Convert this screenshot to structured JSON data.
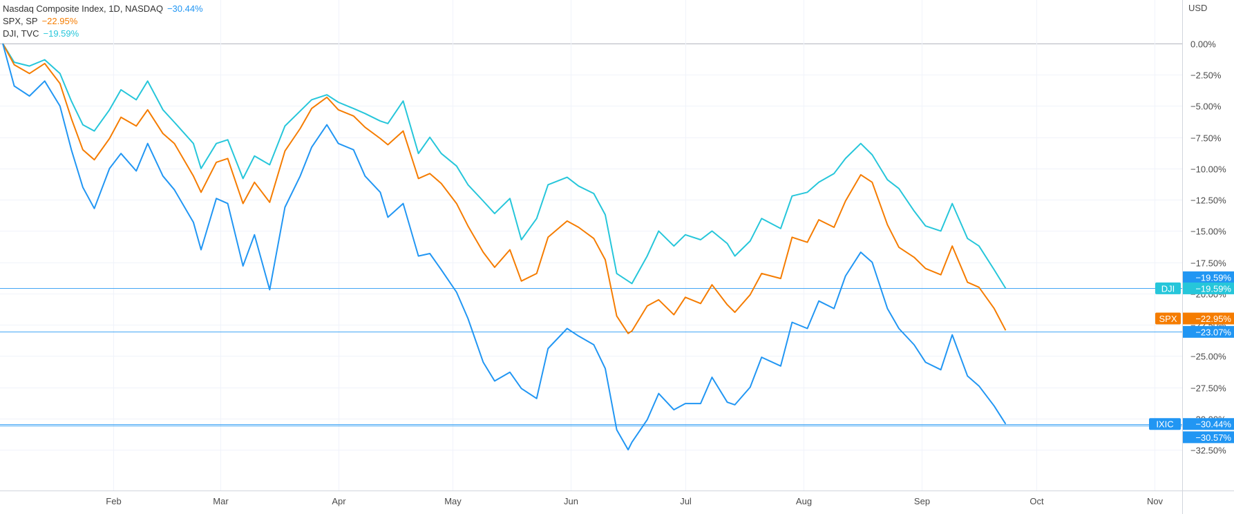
{
  "legend": [
    {
      "label": "Nasdaq Composite Index, 1D, NASDAQ",
      "value": "−30.44%",
      "color": "#2196f3"
    },
    {
      "label": "SPX, SP",
      "value": "−22.95%",
      "color": "#f57c00"
    },
    {
      "label": "DJI, TVC",
      "value": "−19.59%",
      "color": "#26c6da"
    }
  ],
  "axis_currency": "USD",
  "colors": {
    "ixic": "#2196f3",
    "spx": "#f57c00",
    "dji": "#26c6da",
    "grid": "#f0f3fa",
    "axis": "#d1d4dc"
  },
  "chart_data": {
    "type": "line",
    "x_unit": "date",
    "x_range": [
      "2022-01-03",
      "2022-11-15"
    ],
    "y_unit": "percent change",
    "ylim": [
      -35.5,
      2.0
    ],
    "y_ticks": [
      0,
      -2.5,
      -5,
      -7.5,
      -10,
      -12.5,
      -15,
      -17.5,
      -20,
      -22.5,
      -25,
      -27.5,
      -30,
      -32.5
    ],
    "y_tick_labels": [
      "0.00%",
      "−2.50%",
      "−5.00%",
      "−7.50%",
      "−10.00%",
      "−12.50%",
      "−15.00%",
      "−17.50%",
      "−20.00%",
      "−22.50%",
      "−25.00%",
      "−27.50%",
      "−30.00%",
      "−32.50%"
    ],
    "x_ticks": [
      {
        "label": "Feb",
        "date": "2022-02-01"
      },
      {
        "label": "Mar",
        "date": "2022-03-01"
      },
      {
        "label": "Apr",
        "date": "2022-04-01"
      },
      {
        "label": "May",
        "date": "2022-05-01"
      },
      {
        "label": "Jun",
        "date": "2022-06-01"
      },
      {
        "label": "Jul",
        "date": "2022-07-01"
      },
      {
        "label": "Aug",
        "date": "2022-08-01"
      },
      {
        "label": "Sep",
        "date": "2022-09-01"
      },
      {
        "label": "Oct",
        "date": "2022-10-01"
      },
      {
        "label": "Nov",
        "date": "2022-11-01"
      }
    ],
    "grid": true,
    "series": [
      {
        "key": "dji",
        "name": "DJI",
        "points": [
          [
            "2022-01-03",
            0.0
          ],
          [
            "2022-01-06",
            -1.5
          ],
          [
            "2022-01-10",
            -1.8
          ],
          [
            "2022-01-14",
            -1.3
          ],
          [
            "2022-01-18",
            -2.4
          ],
          [
            "2022-01-21",
            -4.6
          ],
          [
            "2022-01-24",
            -6.5
          ],
          [
            "2022-01-27",
            -7.0
          ],
          [
            "2022-01-31",
            -5.3
          ],
          [
            "2022-02-03",
            -3.7
          ],
          [
            "2022-02-07",
            -4.5
          ],
          [
            "2022-02-10",
            -3.0
          ],
          [
            "2022-02-14",
            -5.3
          ],
          [
            "2022-02-17",
            -6.3
          ],
          [
            "2022-02-22",
            -8.0
          ],
          [
            "2022-02-24",
            -10.0
          ],
          [
            "2022-02-28",
            -8.0
          ],
          [
            "2022-03-03",
            -7.7
          ],
          [
            "2022-03-07",
            -10.8
          ],
          [
            "2022-03-10",
            -9.0
          ],
          [
            "2022-03-14",
            -9.7
          ],
          [
            "2022-03-18",
            -6.6
          ],
          [
            "2022-03-22",
            -5.4
          ],
          [
            "2022-03-25",
            -4.5
          ],
          [
            "2022-03-29",
            -4.1
          ],
          [
            "2022-04-01",
            -4.7
          ],
          [
            "2022-04-05",
            -5.2
          ],
          [
            "2022-04-08",
            -5.6
          ],
          [
            "2022-04-12",
            -6.2
          ],
          [
            "2022-04-14",
            -6.4
          ],
          [
            "2022-04-18",
            -4.6
          ],
          [
            "2022-04-22",
            -8.8
          ],
          [
            "2022-04-25",
            -7.5
          ],
          [
            "2022-04-28",
            -8.8
          ],
          [
            "2022-05-02",
            -9.8
          ],
          [
            "2022-05-05",
            -11.3
          ],
          [
            "2022-05-09",
            -12.6
          ],
          [
            "2022-05-12",
            -13.6
          ],
          [
            "2022-05-16",
            -12.4
          ],
          [
            "2022-05-19",
            -15.7
          ],
          [
            "2022-05-23",
            -14.0
          ],
          [
            "2022-05-26",
            -11.3
          ],
          [
            "2022-05-31",
            -10.7
          ],
          [
            "2022-06-03",
            -11.4
          ],
          [
            "2022-06-07",
            -12.0
          ],
          [
            "2022-06-10",
            -13.7
          ],
          [
            "2022-06-13",
            -18.4
          ],
          [
            "2022-06-16",
            -19.0
          ],
          [
            "2022-06-17",
            -19.2
          ],
          [
            "2022-06-21",
            -17.0
          ],
          [
            "2022-06-24",
            -15.0
          ],
          [
            "2022-06-28",
            -16.2
          ],
          [
            "2022-07-01",
            -15.3
          ],
          [
            "2022-07-05",
            -15.7
          ],
          [
            "2022-07-08",
            -15.0
          ],
          [
            "2022-07-12",
            -16.0
          ],
          [
            "2022-07-14",
            -17.0
          ],
          [
            "2022-07-18",
            -15.8
          ],
          [
            "2022-07-21",
            -14.0
          ],
          [
            "2022-07-26",
            -14.8
          ],
          [
            "2022-07-29",
            -12.2
          ],
          [
            "2022-08-02",
            -11.9
          ],
          [
            "2022-08-05",
            -11.1
          ],
          [
            "2022-08-09",
            -10.4
          ],
          [
            "2022-08-12",
            -9.2
          ],
          [
            "2022-08-16",
            -8.0
          ],
          [
            "2022-08-19",
            -8.9
          ],
          [
            "2022-08-23",
            -10.9
          ],
          [
            "2022-08-26",
            -11.6
          ],
          [
            "2022-08-30",
            -13.4
          ],
          [
            "2022-09-02",
            -14.6
          ],
          [
            "2022-09-06",
            -15.0
          ],
          [
            "2022-09-09",
            -12.8
          ],
          [
            "2022-09-13",
            -15.6
          ],
          [
            "2022-09-16",
            -16.2
          ],
          [
            "2022-09-20",
            -18.1
          ],
          [
            "2022-09-23",
            -19.59
          ]
        ]
      },
      {
        "key": "spx",
        "name": "SPX",
        "points": [
          [
            "2022-01-03",
            0.0
          ],
          [
            "2022-01-06",
            -1.7
          ],
          [
            "2022-01-10",
            -2.4
          ],
          [
            "2022-01-14",
            -1.6
          ],
          [
            "2022-01-18",
            -3.2
          ],
          [
            "2022-01-21",
            -6.0
          ],
          [
            "2022-01-24",
            -8.5
          ],
          [
            "2022-01-27",
            -9.3
          ],
          [
            "2022-01-31",
            -7.6
          ],
          [
            "2022-02-03",
            -5.9
          ],
          [
            "2022-02-07",
            -6.6
          ],
          [
            "2022-02-10",
            -5.3
          ],
          [
            "2022-02-14",
            -7.2
          ],
          [
            "2022-02-17",
            -8.0
          ],
          [
            "2022-02-22",
            -10.6
          ],
          [
            "2022-02-24",
            -11.9
          ],
          [
            "2022-02-28",
            -9.5
          ],
          [
            "2022-03-03",
            -9.2
          ],
          [
            "2022-03-07",
            -12.8
          ],
          [
            "2022-03-10",
            -11.1
          ],
          [
            "2022-03-14",
            -12.7
          ],
          [
            "2022-03-18",
            -8.6
          ],
          [
            "2022-03-22",
            -6.8
          ],
          [
            "2022-03-25",
            -5.2
          ],
          [
            "2022-03-29",
            -4.3
          ],
          [
            "2022-04-01",
            -5.3
          ],
          [
            "2022-04-05",
            -5.8
          ],
          [
            "2022-04-08",
            -6.7
          ],
          [
            "2022-04-12",
            -7.6
          ],
          [
            "2022-04-14",
            -8.1
          ],
          [
            "2022-04-18",
            -7.0
          ],
          [
            "2022-04-22",
            -10.8
          ],
          [
            "2022-04-25",
            -10.4
          ],
          [
            "2022-04-28",
            -11.2
          ],
          [
            "2022-05-02",
            -12.8
          ],
          [
            "2022-05-05",
            -14.6
          ],
          [
            "2022-05-09",
            -16.7
          ],
          [
            "2022-05-12",
            -17.9
          ],
          [
            "2022-05-16",
            -16.5
          ],
          [
            "2022-05-19",
            -19.0
          ],
          [
            "2022-05-23",
            -18.4
          ],
          [
            "2022-05-26",
            -15.5
          ],
          [
            "2022-05-31",
            -14.2
          ],
          [
            "2022-06-03",
            -14.7
          ],
          [
            "2022-06-07",
            -15.6
          ],
          [
            "2022-06-10",
            -17.3
          ],
          [
            "2022-06-13",
            -21.8
          ],
          [
            "2022-06-16",
            -23.2
          ],
          [
            "2022-06-17",
            -23.0
          ],
          [
            "2022-06-21",
            -21.0
          ],
          [
            "2022-06-24",
            -20.5
          ],
          [
            "2022-06-28",
            -21.7
          ],
          [
            "2022-07-01",
            -20.3
          ],
          [
            "2022-07-05",
            -20.8
          ],
          [
            "2022-07-08",
            -19.3
          ],
          [
            "2022-07-12",
            -20.9
          ],
          [
            "2022-07-14",
            -21.5
          ],
          [
            "2022-07-18",
            -20.1
          ],
          [
            "2022-07-21",
            -18.4
          ],
          [
            "2022-07-26",
            -18.8
          ],
          [
            "2022-07-29",
            -15.5
          ],
          [
            "2022-08-02",
            -15.9
          ],
          [
            "2022-08-05",
            -14.1
          ],
          [
            "2022-08-09",
            -14.7
          ],
          [
            "2022-08-12",
            -12.6
          ],
          [
            "2022-08-16",
            -10.5
          ],
          [
            "2022-08-19",
            -11.1
          ],
          [
            "2022-08-23",
            -14.5
          ],
          [
            "2022-08-26",
            -16.3
          ],
          [
            "2022-08-30",
            -17.1
          ],
          [
            "2022-09-02",
            -18.0
          ],
          [
            "2022-09-06",
            -18.5
          ],
          [
            "2022-09-09",
            -16.2
          ],
          [
            "2022-09-13",
            -19.1
          ],
          [
            "2022-09-16",
            -19.5
          ],
          [
            "2022-09-20",
            -21.2
          ],
          [
            "2022-09-23",
            -22.95
          ]
        ]
      },
      {
        "key": "ixic",
        "name": "IXIC",
        "points": [
          [
            "2022-01-03",
            0.0
          ],
          [
            "2022-01-06",
            -3.4
          ],
          [
            "2022-01-10",
            -4.2
          ],
          [
            "2022-01-14",
            -3.0
          ],
          [
            "2022-01-18",
            -5.0
          ],
          [
            "2022-01-21",
            -8.5
          ],
          [
            "2022-01-24",
            -11.5
          ],
          [
            "2022-01-27",
            -13.2
          ],
          [
            "2022-01-31",
            -10.0
          ],
          [
            "2022-02-03",
            -8.8
          ],
          [
            "2022-02-07",
            -10.2
          ],
          [
            "2022-02-10",
            -8.0
          ],
          [
            "2022-02-14",
            -10.6
          ],
          [
            "2022-02-17",
            -11.7
          ],
          [
            "2022-02-22",
            -14.3
          ],
          [
            "2022-02-24",
            -16.5
          ],
          [
            "2022-02-28",
            -12.4
          ],
          [
            "2022-03-03",
            -12.8
          ],
          [
            "2022-03-07",
            -17.8
          ],
          [
            "2022-03-10",
            -15.3
          ],
          [
            "2022-03-14",
            -19.7
          ],
          [
            "2022-03-18",
            -13.1
          ],
          [
            "2022-03-22",
            -10.6
          ],
          [
            "2022-03-25",
            -8.3
          ],
          [
            "2022-03-29",
            -6.5
          ],
          [
            "2022-04-01",
            -8.0
          ],
          [
            "2022-04-05",
            -8.5
          ],
          [
            "2022-04-08",
            -10.6
          ],
          [
            "2022-04-12",
            -11.9
          ],
          [
            "2022-04-14",
            -13.9
          ],
          [
            "2022-04-18",
            -12.8
          ],
          [
            "2022-04-22",
            -17.0
          ],
          [
            "2022-04-25",
            -16.8
          ],
          [
            "2022-04-28",
            -18.1
          ],
          [
            "2022-05-02",
            -19.9
          ],
          [
            "2022-05-05",
            -22.0
          ],
          [
            "2022-05-09",
            -25.5
          ],
          [
            "2022-05-12",
            -27.0
          ],
          [
            "2022-05-16",
            -26.3
          ],
          [
            "2022-05-19",
            -27.6
          ],
          [
            "2022-05-23",
            -28.4
          ],
          [
            "2022-05-26",
            -24.4
          ],
          [
            "2022-05-31",
            -22.8
          ],
          [
            "2022-06-03",
            -23.4
          ],
          [
            "2022-06-07",
            -24.1
          ],
          [
            "2022-06-10",
            -26.0
          ],
          [
            "2022-06-13",
            -30.9
          ],
          [
            "2022-06-16",
            -32.5
          ],
          [
            "2022-06-17",
            -31.9
          ],
          [
            "2022-06-21",
            -30.1
          ],
          [
            "2022-06-24",
            -28.0
          ],
          [
            "2022-06-28",
            -29.3
          ],
          [
            "2022-07-01",
            -28.8
          ],
          [
            "2022-07-05",
            -28.8
          ],
          [
            "2022-07-08",
            -26.7
          ],
          [
            "2022-07-12",
            -28.7
          ],
          [
            "2022-07-14",
            -28.9
          ],
          [
            "2022-07-18",
            -27.5
          ],
          [
            "2022-07-21",
            -25.1
          ],
          [
            "2022-07-26",
            -25.8
          ],
          [
            "2022-07-29",
            -22.3
          ],
          [
            "2022-08-02",
            -22.8
          ],
          [
            "2022-08-05",
            -20.6
          ],
          [
            "2022-08-09",
            -21.2
          ],
          [
            "2022-08-12",
            -18.6
          ],
          [
            "2022-08-16",
            -16.7
          ],
          [
            "2022-08-19",
            -17.5
          ],
          [
            "2022-08-23",
            -21.2
          ],
          [
            "2022-08-26",
            -22.8
          ],
          [
            "2022-08-30",
            -24.1
          ],
          [
            "2022-09-02",
            -25.5
          ],
          [
            "2022-09-06",
            -26.1
          ],
          [
            "2022-09-09",
            -23.3
          ],
          [
            "2022-09-13",
            -26.6
          ],
          [
            "2022-09-16",
            -27.4
          ],
          [
            "2022-09-20",
            -29.0
          ],
          [
            "2022-09-23",
            -30.44
          ]
        ]
      }
    ],
    "horizontal_lines": [
      -19.59,
      -23.07,
      -30.44,
      -30.57
    ],
    "right_tags": [
      {
        "label": "",
        "value": "−19.59%",
        "at": -18.7,
        "color": "#2196f3"
      },
      {
        "label": "DJI",
        "value": "−19.59%",
        "at": -19.59,
        "color": "#26c6da"
      },
      {
        "label": "SPX",
        "value": "−22.95%",
        "at": -22.0,
        "color": "#f57c00"
      },
      {
        "label": "",
        "value": "−23.07%",
        "at": -23.07,
        "color": "#2196f3"
      },
      {
        "label": "IXIC",
        "value": "−30.44%",
        "at": -30.44,
        "color": "#2196f3"
      },
      {
        "label": "",
        "value": "−30.57%",
        "at": -31.5,
        "color": "#2196f3"
      }
    ]
  }
}
